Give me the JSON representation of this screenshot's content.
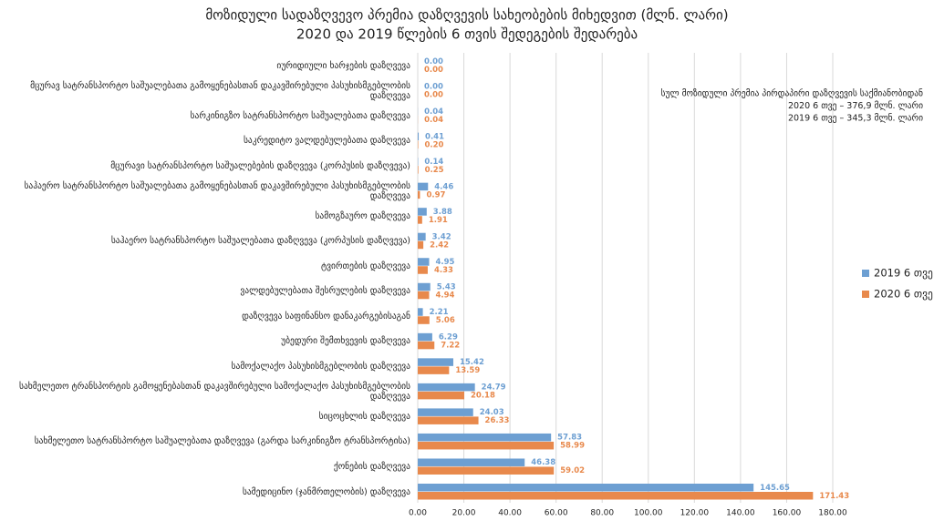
{
  "chart_data": {
    "type": "hbar",
    "title": "მოზიდული სადაზღვევო პრემია დაზღვევის სახეობების მიხედვით (მლნ. ლარი)",
    "subtitle": "2020 და 2019 წლების 6 თვის შედეგების შედარება",
    "annotation": [
      "სულ მოზიდული პრემია პირდაპირი დაზღვევის საქმიანობიდან",
      "2020 6 თვე – 376,9 მლნ. ლარი",
      "2019 6 თვე – 345,3 მლნ. ლარი"
    ],
    "categories": [
      "იურიდიული ხარჯების დაზღვევა",
      "მცურავ სატრანსპორტო საშუალებათა გამოყენებასთან დაკავშირებული პასუხისმგებლობის დაზღვევა",
      "სარკინიგზო სატრანსპორტო საშუალებათა დაზღვევა",
      "საკრედიტო ვალდებულებათა დაზღვევა",
      "მცურავი სატრანსპორტო საშუალებების დაზღვევა (კორპუსის დაზღვევა)",
      "საჰაერო სატრანსპორტო საშუალებათა გამოყენებასთან დაკავშირებული პასუხისმგებლობის დაზღვევა",
      "სამოგზაურო დაზღვევა",
      "საჰაერო სატრანსპორტო საშუალებათა დაზღვევა (კორპუსის დაზღვევა)",
      "ტვირთების დაზღვევა",
      "ვალდებულებათა შესრულების დაზღვევა",
      "დაზღვევა საფინანსო დანაკარგებისაგან",
      "უბედური შემთხვევის დაზღვევა",
      "სამოქალაქო პასუხისმგებლობის დაზღვევა",
      "სახმელეთო ტრანსპორტის გამოყენებასთან დაკავშირებული სამოქალაქო პასუხისმგებლობის დაზღვევა",
      "სიცოცხლის დაზღვევა",
      "სახმელეთო სატრანსპორტო საშუალებათა დაზღვევა (გარდა სარკინიგზო ტრანსპორტისა)",
      "ქონების დაზღვევა",
      "სამედიცინო (ჯანმრთელობის) დაზღვევა"
    ],
    "series": [
      {
        "name": "2019 6 თვე",
        "color": "#6d9fd2",
        "values": [
          0,
          0,
          0.04,
          0.41,
          0.14,
          4.46,
          3.88,
          3.42,
          4.95,
          5.43,
          2.21,
          6.29,
          15.42,
          24.79,
          24.03,
          57.83,
          46.38,
          145.65
        ],
        "value_labels": [
          "0.00",
          "0.00",
          "0.04",
          "0.41",
          "0.14",
          "4.46",
          "3.88",
          "3.42",
          "4.95",
          "5.43",
          "2.21",
          "6.29",
          "15.42",
          "24.79",
          "24.03",
          "57.83",
          "46.38",
          "145.65"
        ]
      },
      {
        "name": "2020 6 თვე",
        "color": "#e8894c",
        "values": [
          0,
          0,
          0.04,
          0.2,
          0.25,
          0.97,
          1.91,
          2.42,
          4.33,
          4.94,
          5.06,
          7.22,
          13.59,
          20.18,
          26.33,
          58.99,
          59.02,
          171.43
        ],
        "value_labels": [
          "0.00",
          "0.00",
          "0.04",
          "0.20",
          "0.25",
          "0.97",
          "1.91",
          "2.42",
          "4.33",
          "4.94",
          "5.06",
          "7.22",
          "13.59",
          "20.18",
          "26.33",
          "58.99",
          "59.02",
          "171.43"
        ]
      }
    ],
    "xlim": [
      0,
      180
    ],
    "xticks": [
      {
        "value": 0,
        "label": "0.00"
      },
      {
        "value": 20,
        "label": "20.00"
      },
      {
        "value": 40,
        "label": "40.00"
      },
      {
        "value": 60,
        "label": "60.00"
      },
      {
        "value": 80,
        "label": "80.00"
      },
      {
        "value": 100,
        "label": "100.00"
      },
      {
        "value": 120,
        "label": "120.00"
      },
      {
        "value": 140,
        "label": "140.00"
      },
      {
        "value": 160,
        "label": "160.00"
      },
      {
        "value": 180,
        "label": "180.00"
      }
    ],
    "grid": true,
    "legend": "right"
  }
}
